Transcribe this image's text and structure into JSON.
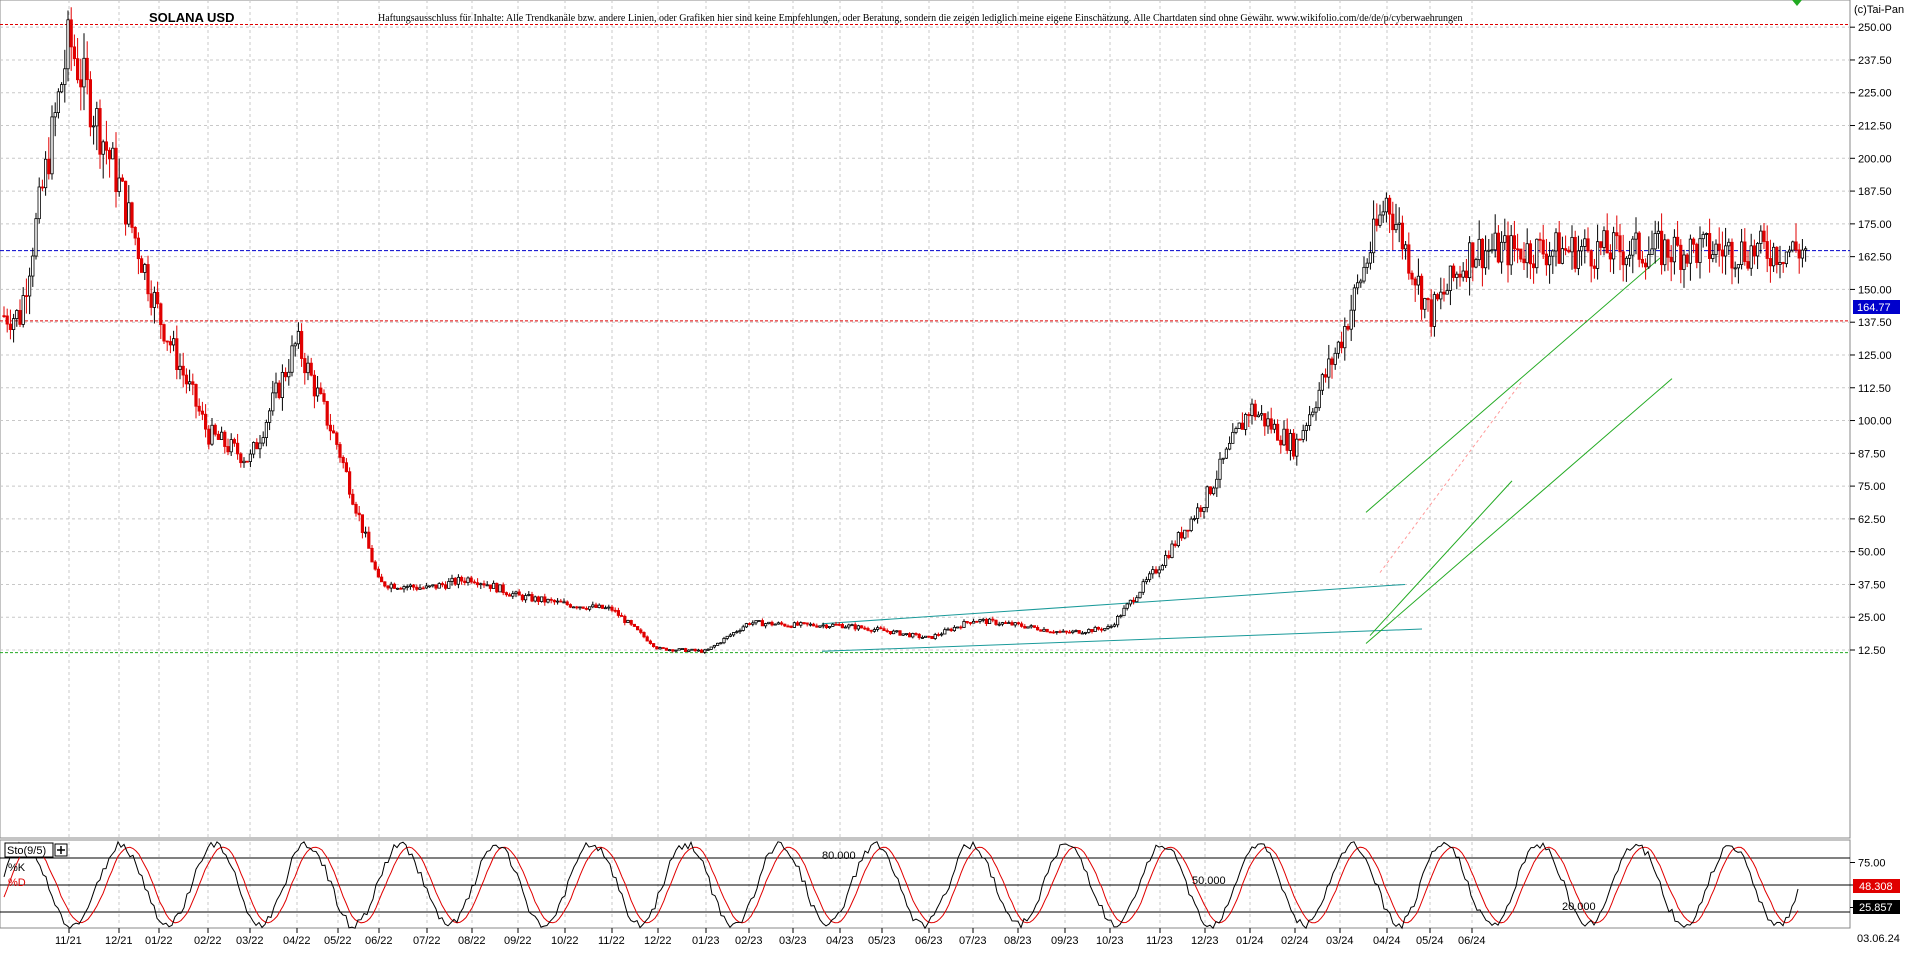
{
  "header": {
    "symbol": "SOLANA USD",
    "disclaimer": "Haftungsausschluss für Inhalte: Alle Trendkanäle bzw. andere Linien, oder Grafiken hier sind keine Empfehlungen, oder Beratung, sondern die zeigen lediglich meine eigene Einschätzung. Alle Chartdaten sind ohne Gewähr. www.wikifolio.com/de/de/p/cyberwaehrungen",
    "copyright": "(c)Tai-Pan"
  },
  "stochastic": {
    "name": "Sto(9/5)",
    "k_label": "%K",
    "d_label": "%D",
    "levels": [
      "80.000",
      "50.000",
      "20.000"
    ],
    "current_d": "48.308",
    "current_k": "25.857",
    "axis_ticks": [
      "75.00",
      "50.00",
      "25.00"
    ]
  },
  "last_date": "03.06.24",
  "colors": {
    "up_candle": "#000000",
    "down_candle": "#e00000",
    "channel_green": "#22aa22",
    "channel_teal": "#1a9a9a",
    "price_line": "#0000cc",
    "grid": "#c8c8c8"
  },
  "chart_data": [
    {
      "type": "candlestick",
      "title": "SOLANA USD",
      "y_ticks": [
        "250.00",
        "237.50",
        "225.00",
        "212.50",
        "200.00",
        "187.50",
        "175.00",
        "162.50",
        "150.00",
        "137.50",
        "125.00",
        "112.50",
        "100.00",
        "87.50",
        "75.00",
        "62.50",
        "50.00",
        "37.50",
        "25.00",
        "12.50"
      ],
      "ylim": [
        5,
        252
      ],
      "current_price": "164.77",
      "x_ticks": [
        "11/21",
        "12/21",
        "01/22",
        "02/22",
        "03/22",
        "04/22",
        "05/22",
        "06/22",
        "07/22",
        "08/22",
        "09/22",
        "10/22",
        "11/22",
        "12/22",
        "01/23",
        "02/23",
        "03/23",
        "04/23",
        "05/23",
        "06/23",
        "07/23",
        "08/23",
        "09/23",
        "10/23",
        "11/23",
        "12/23",
        "01/24",
        "02/24",
        "03/24",
        "04/24",
        "05/24",
        "06/24"
      ],
      "horizontal_lines": [
        251,
        138,
        11.5
      ],
      "keypoints": [
        [
          "10/21",
          140
        ],
        [
          "11/21",
          245
        ],
        [
          "12/21",
          190
        ],
        [
          "01/22",
          140
        ],
        [
          "02/22",
          95
        ],
        [
          "03/22",
          85
        ],
        [
          "04/22",
          130
        ],
        [
          "05/22",
          90
        ],
        [
          "06/22",
          38
        ],
        [
          "07/22",
          36
        ],
        [
          "08/22",
          40
        ],
        [
          "09/22",
          33
        ],
        [
          "10/22",
          30
        ],
        [
          "11/22",
          28
        ],
        [
          "12/22",
          13
        ],
        [
          "01/23",
          12
        ],
        [
          "02/23",
          23
        ],
        [
          "03/23",
          22
        ],
        [
          "04/23",
          22
        ],
        [
          "05/23",
          20
        ],
        [
          "06/23",
          17
        ],
        [
          "07/23",
          24
        ],
        [
          "08/23",
          22
        ],
        [
          "09/23",
          19
        ],
        [
          "10/23",
          21
        ],
        [
          "11/23",
          45
        ],
        [
          "12/23",
          70
        ],
        [
          "01/24",
          105
        ],
        [
          "02/24",
          90
        ],
        [
          "03/24",
          130
        ],
        [
          "04/24",
          185
        ],
        [
          "05/24",
          140
        ],
        [
          "06/24",
          165
        ]
      ]
    },
    {
      "type": "line",
      "title": "Sto(9/5)",
      "series": [
        {
          "name": "%K"
        },
        {
          "name": "%D"
        }
      ],
      "ylim": [
        0,
        100
      ],
      "levels": [
        80,
        50,
        20
      ],
      "last_k": 25.857,
      "last_d": 48.308
    }
  ]
}
